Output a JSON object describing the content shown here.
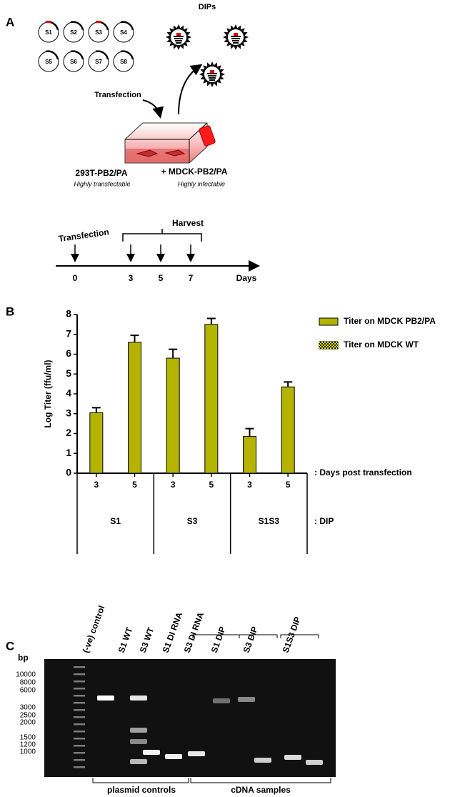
{
  "panel_a": {
    "label": "A",
    "dips_label": "DIPs",
    "segments": [
      "S1",
      "S2",
      "S3",
      "S4",
      "S5",
      "S6",
      "S7",
      "S8"
    ],
    "transfection_label": "Transfection",
    "cell_1": {
      "name": "293T-PB2/PA",
      "note": "Highly transfectable"
    },
    "cell_2": {
      "name": "+ MDCK-PB2/PA",
      "note": "Highly infectable"
    },
    "timeline": {
      "start_label": "Transfection",
      "harvest_label": "Harvest",
      "ticks": [
        "0",
        "3",
        "5",
        "7"
      ],
      "unit": "Days"
    }
  },
  "chart_data": {
    "type": "bar",
    "panel_label": "B",
    "y_label": "Log Titer (ffu/ml)",
    "categories": [
      "3",
      "5",
      "3",
      "5",
      "3",
      "5"
    ],
    "groups": [
      "S1",
      "S3",
      "S1S3"
    ],
    "x_annotation": ": Days post transfection",
    "group_annotation": ": DIP",
    "series": [
      {
        "name": "Titer on MDCK PB2/PA",
        "color": "#b3b300",
        "values": [
          3.05,
          6.6,
          5.8,
          7.5,
          1.85,
          4.35
        ],
        "errors": [
          0.25,
          0.35,
          0.45,
          0.3,
          0.4,
          0.25
        ]
      },
      {
        "name": "Titer on MDCK WT",
        "color": "#1a1a00",
        "values": [
          null,
          null,
          null,
          null,
          null,
          null
        ]
      }
    ],
    "ylim": [
      0,
      8
    ],
    "yticks": [
      0,
      1,
      2,
      3,
      4,
      5,
      6,
      7,
      8
    ],
    "legend": "right"
  },
  "panel_c": {
    "label": "C",
    "bp_label": "bp",
    "lanes": [
      "(-ve) control",
      "S1 WT",
      "S3 WT",
      "S1 DI RNA",
      "S3 DI RNA",
      "S1 DIP",
      "S3 DIP",
      "S1S3 DIP"
    ],
    "ladder": [
      "10000",
      "8000",
      "6000",
      "3000",
      "2500",
      "2000",
      "1500",
      "1200",
      "1000"
    ],
    "group_1": "plasmid controls",
    "group_2": "cDNA samples"
  }
}
